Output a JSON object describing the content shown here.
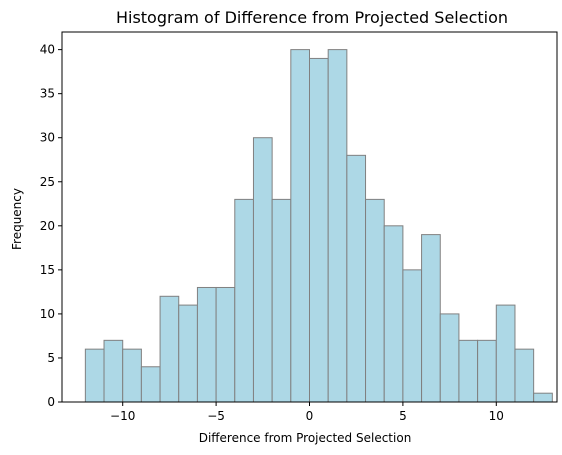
{
  "chart_data": {
    "type": "bar",
    "title": "Histogram of Difference from Projected Selection",
    "xlabel": "Difference from Projected Selection",
    "ylabel": "Frequency",
    "bin_width": 1,
    "bin_edges": [
      -12,
      -11,
      -10,
      -9,
      -8,
      -7,
      -6,
      -5,
      -4,
      -3,
      -2,
      -1,
      0,
      1,
      2,
      3,
      4,
      5,
      6,
      7,
      8,
      9,
      10,
      11,
      12
    ],
    "values": [
      6,
      7,
      6,
      4,
      12,
      11,
      13,
      13,
      23,
      30,
      23,
      40,
      39,
      40,
      28,
      23,
      20,
      15,
      19,
      10,
      7,
      7,
      11,
      6,
      1
    ],
    "xlim": [
      -13.25,
      13.25
    ],
    "ylim": [
      0,
      42
    ],
    "xticks": [
      -10,
      -5,
      0,
      5,
      10
    ],
    "xtick_labels": [
      "−10",
      "−5",
      "0",
      "5",
      "10"
    ],
    "yticks": [
      0,
      5,
      10,
      15,
      20,
      25,
      30,
      35,
      40
    ],
    "ytick_labels": [
      "0",
      "5",
      "10",
      "15",
      "20",
      "25",
      "30",
      "35",
      "40"
    ],
    "grid": false,
    "colors": {
      "bar_fill": "#add8e6",
      "bar_edge": "#808080"
    }
  }
}
